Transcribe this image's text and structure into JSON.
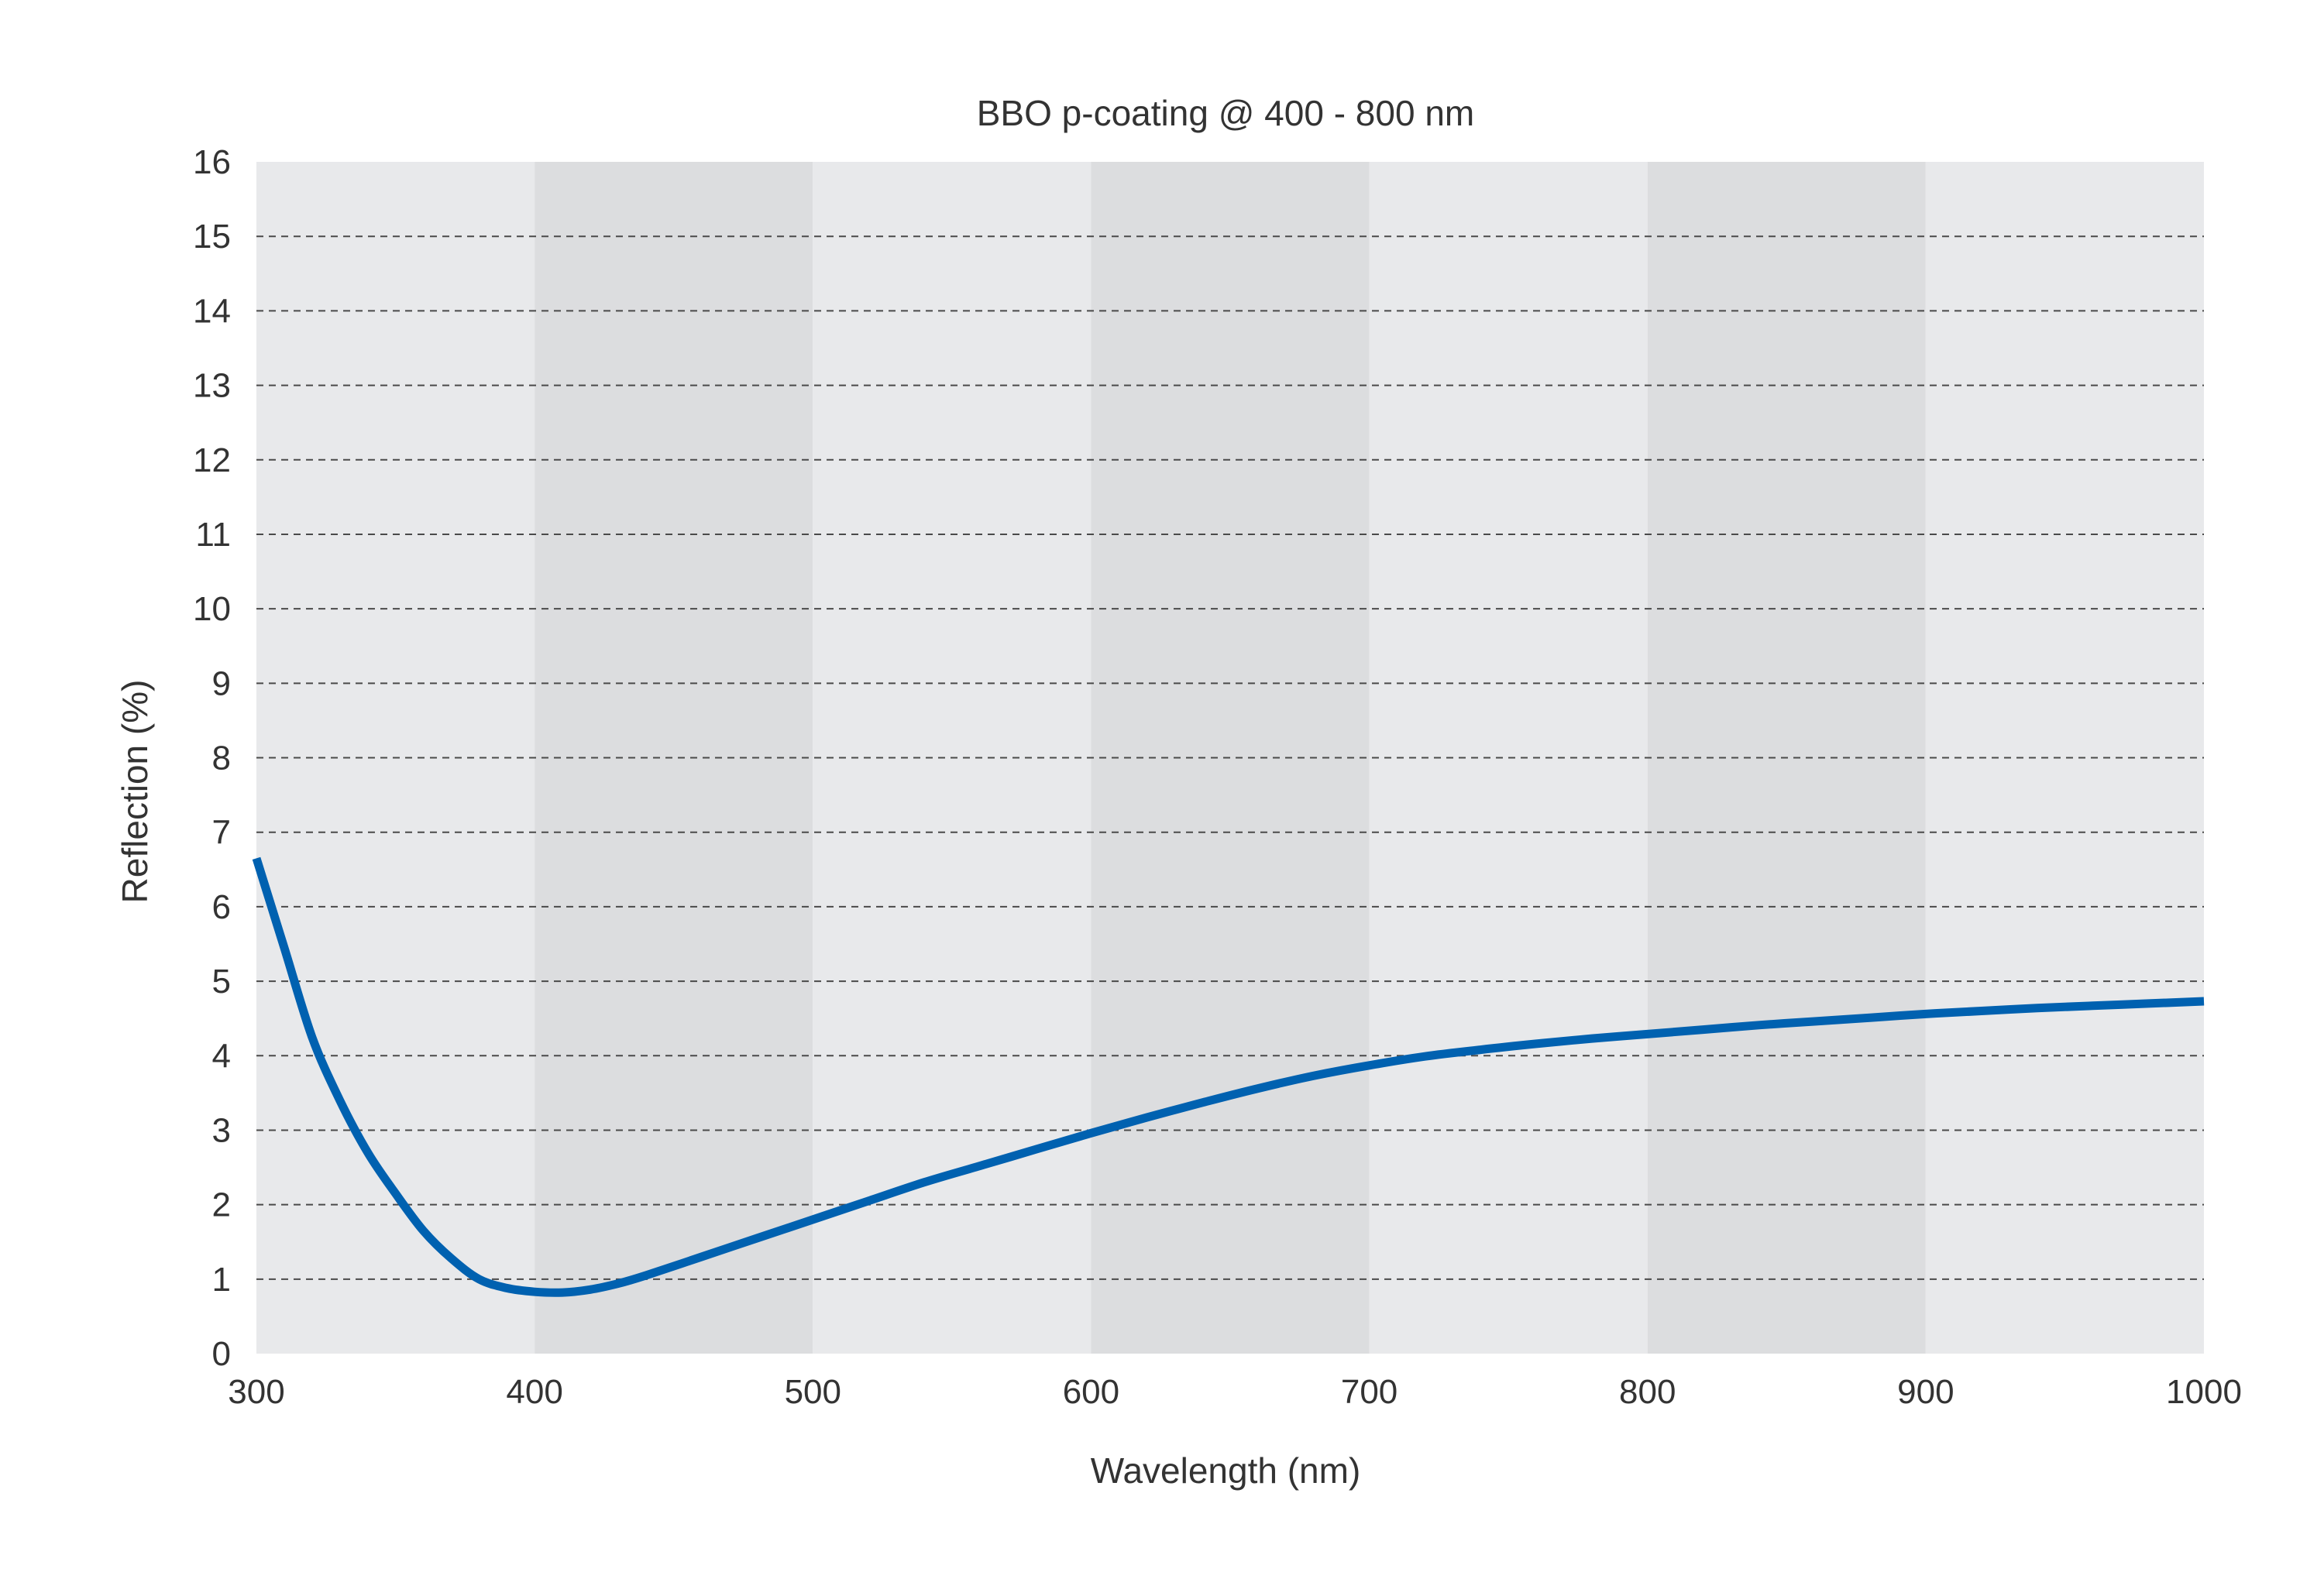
{
  "chart_data": {
    "type": "line",
    "title": "BBO p-coating @ 400 - 800 nm",
    "xlabel": "Wavelength (nm)",
    "ylabel": "Reflection (%)",
    "xlim": [
      300,
      1000
    ],
    "ylim": [
      0,
      16
    ],
    "xticks": [
      "300",
      "400",
      "500",
      "600",
      "700",
      "800",
      "900",
      "1000"
    ],
    "yticks": [
      "0",
      "1",
      "2",
      "3",
      "4",
      "5",
      "6",
      "7",
      "8",
      "9",
      "10",
      "11",
      "12",
      "13",
      "14",
      "15",
      "16"
    ],
    "grid": "horizontal dashed",
    "band_colors": [
      "#e8e9eb",
      "#dcdddf"
    ],
    "series": [
      {
        "color": "#0061b0",
        "x": [
          300,
          310,
          320,
          330,
          340,
          350,
          360,
          370,
          380,
          390,
          400,
          410,
          420,
          430,
          440,
          460,
          480,
          500,
          520,
          540,
          560,
          580,
          600,
          620,
          640,
          660,
          680,
          700,
          720,
          740,
          760,
          780,
          800,
          820,
          840,
          860,
          880,
          900,
          920,
          940,
          960,
          980,
          1000
        ],
        "y": [
          6.65,
          5.45,
          4.25,
          3.4,
          2.7,
          2.15,
          1.65,
          1.28,
          1.0,
          0.88,
          0.83,
          0.82,
          0.86,
          0.94,
          1.05,
          1.3,
          1.55,
          1.8,
          2.05,
          2.3,
          2.52,
          2.74,
          2.96,
          3.17,
          3.37,
          3.56,
          3.73,
          3.87,
          3.99,
          4.08,
          4.16,
          4.23,
          4.29,
          4.35,
          4.41,
          4.46,
          4.51,
          4.56,
          4.6,
          4.64,
          4.67,
          4.7,
          4.73
        ]
      }
    ]
  }
}
